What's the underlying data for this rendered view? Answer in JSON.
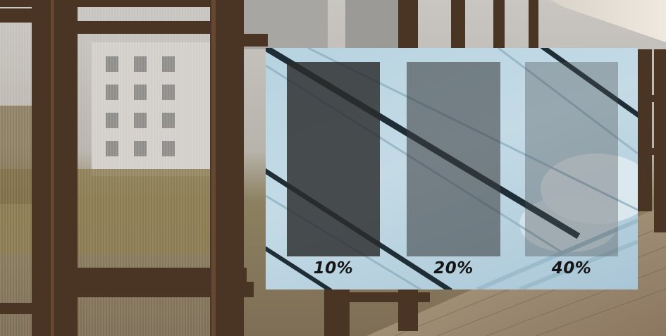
{
  "tint_samples": [
    {
      "label": "10%",
      "swatch_color": "#2b2c2c",
      "swatch_opacity": 0.82
    },
    {
      "label": "20%",
      "swatch_color": "#3a3e40",
      "swatch_opacity": 0.58
    },
    {
      "label": "40%",
      "swatch_color": "#4a4e50",
      "swatch_opacity": 0.36
    }
  ],
  "colors": {
    "frame": "#4a3424",
    "sky": "#b9d4e1",
    "deck": "#9c8870"
  }
}
